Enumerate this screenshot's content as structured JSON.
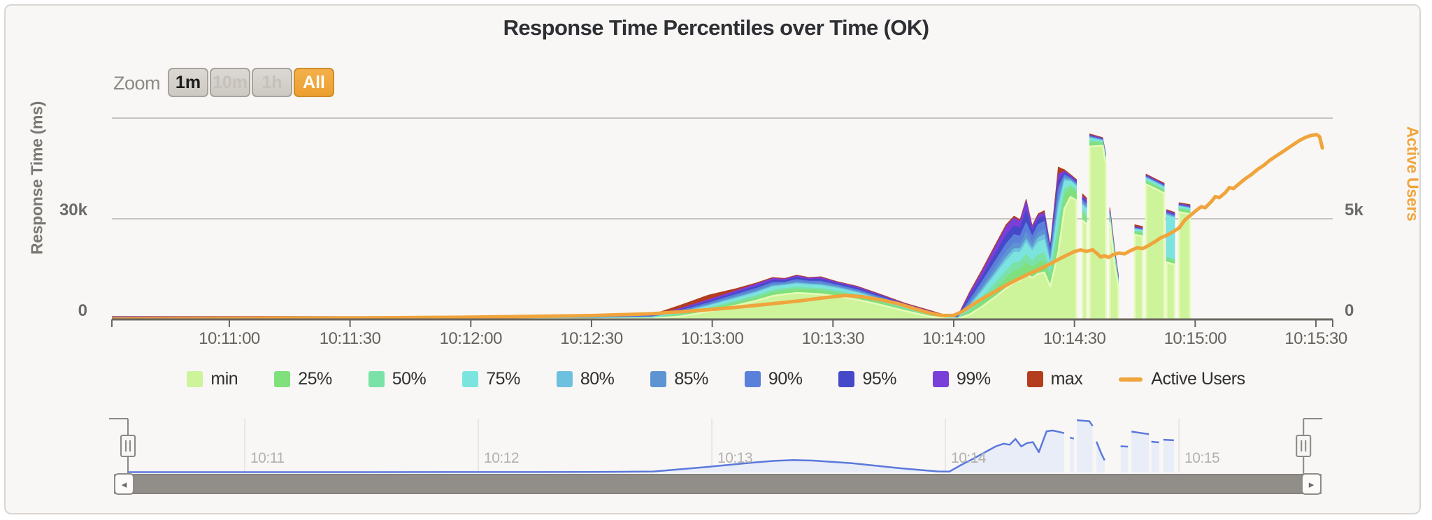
{
  "toolbar": {
    "label": "Zoom",
    "buttons": [
      {
        "label": "1m",
        "state": "enabled"
      },
      {
        "label": "10m",
        "state": "disabled"
      },
      {
        "label": "1h",
        "state": "disabled"
      },
      {
        "label": "All",
        "state": "selected"
      }
    ]
  },
  "icons": {
    "scrollbar_left": "◂",
    "scrollbar_right": "▸"
  },
  "chart_data": {
    "type": "area",
    "title": "Response Time Percentiles over Time (OK)",
    "x_axis": {
      "ticks": [
        {
          "t": 30,
          "label": "10:11:00"
        },
        {
          "t": 60,
          "label": "10:11:30"
        },
        {
          "t": 90,
          "label": "10:12:00"
        },
        {
          "t": 120,
          "label": "10:12:30"
        },
        {
          "t": 150,
          "label": "10:13:00"
        },
        {
          "t": 180,
          "label": "10:13:30"
        },
        {
          "t": 210,
          "label": "10:14:00"
        },
        {
          "t": 240,
          "label": "10:14:30"
        },
        {
          "t": 270,
          "label": "10:15:00"
        },
        {
          "t": 300,
          "label": "10:15:30"
        }
      ],
      "start_time": "10:10:30",
      "end_time": "10:15:32"
    },
    "y_left": {
      "title": "Response Time (ms)",
      "max": 60000,
      "gridlines": [
        30000,
        60000
      ],
      "ticks": [
        {
          "v": 0,
          "label": "0"
        },
        {
          "v": 30000,
          "label": "30k"
        }
      ]
    },
    "y_right": {
      "title": "Active Users",
      "max": 10000,
      "ticks": [
        {
          "v": 0,
          "label": "0"
        },
        {
          "v": 5000,
          "label": "5k"
        }
      ]
    },
    "percentiles": {
      "names": [
        "min",
        "25%",
        "50%",
        "75%",
        "80%",
        "85%",
        "90%",
        "95%",
        "99%",
        "max"
      ],
      "colors": [
        "#cdf39b",
        "#7fe07c",
        "#7be2a7",
        "#7ce4de",
        "#6ec0df",
        "#5e94d1",
        "#5b80da",
        "#4549c8",
        "#7a3ed9",
        "#b33d1e"
      ],
      "t": [
        0,
        60,
        120,
        135,
        142,
        149,
        156,
        161,
        165,
        168,
        171,
        174,
        177,
        181,
        186,
        192,
        198,
        204,
        208,
        211,
        214,
        217,
        220,
        223,
        225,
        226.5,
        228,
        229.5,
        231,
        232.5,
        234,
        236,
        237.5,
        239,
        240.5,
        241.3,
        242,
        243,
        243.4,
        243.8,
        247,
        247.8,
        248.2,
        248.8,
        250,
        250.9,
        251.5,
        255,
        256.9,
        257.4,
        257.8,
        262.3,
        262.6,
        262.9,
        264.9,
        265.4,
        266,
        268.7
      ],
      "rows": [
        [
          100,
          180,
          250,
          350,
          400,
          450,
          520,
          600,
          700,
          850
        ],
        [
          100,
          180,
          250,
          350,
          400,
          450,
          520,
          600,
          700,
          850
        ],
        [
          120,
          200,
          280,
          380,
          430,
          480,
          550,
          640,
          750,
          900
        ],
        [
          250,
          400,
          520,
          680,
          740,
          800,
          900,
          1000,
          1150,
          1400
        ],
        [
          900,
          1300,
          1600,
          2000,
          2150,
          2350,
          2600,
          2900,
          3250,
          4200
        ],
        [
          2300,
          3000,
          3400,
          4000,
          4250,
          4550,
          4950,
          5350,
          5850,
          7200
        ],
        [
          4200,
          5000,
          5500,
          6300,
          6600,
          7000,
          7500,
          8000,
          8600,
          9200
        ],
        [
          5600,
          6500,
          7100,
          8000,
          8300,
          8700,
          9300,
          9900,
          10600,
          10900
        ],
        [
          7000,
          8000,
          8700,
          9700,
          10000,
          10400,
          11000,
          11600,
          12200,
          12500
        ],
        [
          7500,
          8600,
          9200,
          10100,
          10400,
          10700,
          11100,
          11600,
          12000,
          12200
        ],
        [
          7900,
          9000,
          9600,
          10600,
          10900,
          11300,
          11900,
          12500,
          13000,
          13200
        ],
        [
          7700,
          8800,
          9400,
          10300,
          10600,
          10900,
          11400,
          11900,
          12300,
          12500
        ],
        [
          7500,
          8600,
          9200,
          10100,
          10400,
          10800,
          11400,
          12000,
          12500,
          12700
        ],
        [
          6900,
          7900,
          8500,
          9300,
          9600,
          9900,
          10300,
          10700,
          11100,
          11300
        ],
        [
          5900,
          6800,
          7300,
          8000,
          8200,
          8500,
          8900,
          9300,
          9700,
          9900
        ],
        [
          4300,
          5000,
          5400,
          5900,
          6100,
          6300,
          6600,
          6900,
          7200,
          7400
        ],
        [
          2500,
          3000,
          3300,
          3700,
          3800,
          4000,
          4200,
          4400,
          4600,
          4800
        ],
        [
          900,
          1200,
          1400,
          1700,
          1800,
          1900,
          2100,
          2300,
          2500,
          2700
        ],
        [
          300,
          450,
          550,
          700,
          750,
          800,
          900,
          1000,
          1100,
          1250
        ],
        [
          200,
          300,
          380,
          480,
          520,
          570,
          650,
          750,
          850,
          1000
        ],
        [
          1500,
          2300,
          3000,
          4000,
          4400,
          5000,
          5900,
          6800,
          7800,
          8300
        ],
        [
          3800,
          5400,
          6600,
          8300,
          8900,
          9800,
          11200,
          12600,
          14100,
          14700
        ],
        [
          6400,
          8700,
          10400,
          12800,
          13600,
          14900,
          16800,
          18800,
          20900,
          21500
        ],
        [
          9200,
          12200,
          14400,
          17400,
          18500,
          20100,
          22500,
          25000,
          27600,
          28200
        ],
        [
          11000,
          14400,
          16900,
          20000,
          21100,
          22800,
          25300,
          27900,
          30300,
          30800
        ],
        [
          11600,
          14900,
          17200,
          20100,
          21100,
          22600,
          24900,
          27200,
          29200,
          29700
        ],
        [
          13400,
          16900,
          19400,
          22900,
          24000,
          25900,
          28900,
          32300,
          35300,
          35800
        ],
        [
          12400,
          15400,
          17400,
          20400,
          21300,
          22800,
          24800,
          26400,
          27400,
          27900
        ],
        [
          13600,
          16900,
          19300,
          23000,
          24400,
          25900,
          28300,
          29900,
          31000,
          31500
        ],
        [
          14000,
          17400,
          19900,
          23800,
          25300,
          26800,
          29300,
          30800,
          31900,
          32400
        ],
        [
          9800,
          12300,
          13900,
          16400,
          17400,
          18400,
          19900,
          20900,
          21400,
          21900
        ],
        [
          20000,
          24800,
          27800,
          32800,
          34800,
          36800,
          39300,
          41300,
          43300,
          45400
        ],
        [
          33000,
          37000,
          38800,
          41200,
          41900,
          42400,
          43100,
          43600,
          44200,
          44600
        ],
        [
          36500,
          39200,
          40100,
          41200,
          41500,
          41800,
          42200,
          42500,
          42900,
          43200
        ],
        [
          35500,
          37600,
          38600,
          39700,
          40000,
          40300,
          40700,
          41000,
          41400,
          41700
        ],
        null,
        [
          29500,
          31500,
          32500,
          34000,
          34500,
          35000,
          35600,
          36100,
          36700,
          37400
        ],
        [
          28500,
          30400,
          31400,
          32900,
          33400,
          33900,
          34500,
          35000,
          35600,
          36200
        ],
        null,
        [
          51500,
          52800,
          53300,
          54000,
          54200,
          54400,
          54600,
          54800,
          55000,
          55300
        ],
        [
          51800,
          52600,
          52900,
          53300,
          53400,
          53500,
          53700,
          53800,
          54000,
          54200
        ],
        [
          46500,
          47300,
          47700,
          48200,
          48400,
          48500,
          48700,
          48800,
          49000,
          49200
        ],
        null,
        [
          28800,
          30000,
          30600,
          31300,
          31500,
          31700,
          32000,
          32200,
          32500,
          33300
        ],
        [
          16000,
          17400,
          18100,
          18900,
          19100,
          19400,
          19700,
          19900,
          20300,
          20800
        ],
        [
          9800,
          10600,
          11000,
          11600,
          11800,
          12000,
          12300,
          12500,
          12800,
          13200
        ],
        null,
        [
          25200,
          26000,
          26400,
          26900,
          27000,
          27100,
          27300,
          27400,
          27600,
          28200
        ],
        [
          24800,
          25600,
          26000,
          26500,
          26600,
          26700,
          26900,
          27000,
          27200,
          27700
        ],
        null,
        [
          40300,
          41100,
          41500,
          42100,
          42300,
          42400,
          42600,
          42700,
          43000,
          43300
        ],
        [
          37600,
          38400,
          38800,
          39400,
          39600,
          39700,
          39900,
          40000,
          40300,
          40600
        ],
        null,
        [
          17000,
          18000,
          18600,
          31000,
          31300,
          31500,
          31800,
          32000,
          32400,
          32700
        ],
        [
          16400,
          17400,
          18000,
          30200,
          30500,
          30700,
          31000,
          31200,
          31600,
          31900
        ],
        null,
        [
          32000,
          32800,
          33200,
          33700,
          33800,
          33900,
          34100,
          34200,
          34500,
          34800
        ],
        [
          31400,
          32200,
          32600,
          33100,
          33200,
          33300,
          33500,
          33600,
          33900,
          34200
        ]
      ]
    },
    "active_users": {
      "name": "Active Users",
      "color": "#f0a43c",
      "points": [
        [
          0,
          15
        ],
        [
          30,
          40
        ],
        [
          60,
          70
        ],
        [
          90,
          110
        ],
        [
          120,
          190
        ],
        [
          135,
          280
        ],
        [
          145,
          420
        ],
        [
          155,
          580
        ],
        [
          165,
          780
        ],
        [
          172,
          930
        ],
        [
          178,
          1080
        ],
        [
          183,
          1190
        ],
        [
          187,
          1140
        ],
        [
          192,
          970
        ],
        [
          196,
          790
        ],
        [
          200,
          550
        ],
        [
          204,
          320
        ],
        [
          207,
          195
        ],
        [
          210,
          200
        ],
        [
          212,
          380
        ],
        [
          214,
          640
        ],
        [
          216,
          900
        ],
        [
          218,
          1130
        ],
        [
          220,
          1350
        ],
        [
          222,
          1580
        ],
        [
          224,
          1800
        ],
        [
          226,
          2000
        ],
        [
          228,
          2200
        ],
        [
          230,
          2380
        ],
        [
          232,
          2560
        ],
        [
          234,
          2760
        ],
        [
          236,
          2980
        ],
        [
          238,
          3180
        ],
        [
          240,
          3370
        ],
        [
          241.5,
          3450
        ],
        [
          243,
          3380
        ],
        [
          244.5,
          3460
        ],
        [
          245.5,
          3300
        ],
        [
          246.5,
          3100
        ],
        [
          247.5,
          3160
        ],
        [
          248.5,
          3080
        ],
        [
          249.5,
          3200
        ],
        [
          251,
          3300
        ],
        [
          252.5,
          3260
        ],
        [
          254,
          3420
        ],
        [
          255.5,
          3560
        ],
        [
          257,
          3520
        ],
        [
          258.5,
          3680
        ],
        [
          260,
          3860
        ],
        [
          261.5,
          4060
        ],
        [
          263,
          4180
        ],
        [
          264.5,
          4350
        ],
        [
          266,
          4550
        ],
        [
          267.5,
          4950
        ],
        [
          269,
          5200
        ],
        [
          270.5,
          5450
        ],
        [
          271.5,
          5600
        ],
        [
          272.5,
          5550
        ],
        [
          274,
          5850
        ],
        [
          275,
          6100
        ],
        [
          276,
          6050
        ],
        [
          277.5,
          6300
        ],
        [
          278.5,
          6550
        ],
        [
          279.5,
          6500
        ],
        [
          281,
          6750
        ],
        [
          282.5,
          7000
        ],
        [
          284,
          7200
        ],
        [
          285.5,
          7450
        ],
        [
          287,
          7650
        ],
        [
          288.5,
          7900
        ],
        [
          290,
          8100
        ],
        [
          291.5,
          8300
        ],
        [
          293,
          8500
        ],
        [
          294.5,
          8700
        ],
        [
          296,
          8900
        ],
        [
          297.5,
          9050
        ],
        [
          299,
          9150
        ],
        [
          300.2,
          9180
        ],
        [
          300.9,
          9080
        ],
        [
          301.6,
          8520
        ]
      ]
    },
    "navigator": {
      "line_color": "#5b79dc",
      "fill_color": "#e9edf8",
      "ticks": [
        {
          "t": 30,
          "label": "10:11"
        },
        {
          "t": 90,
          "label": "10:12"
        },
        {
          "t": 150,
          "label": "10:13"
        },
        {
          "t": 210,
          "label": "10:14"
        },
        {
          "t": 270,
          "label": "10:15"
        }
      ],
      "points": [
        [
          0,
          400
        ],
        [
          60,
          400
        ],
        [
          120,
          500
        ],
        [
          135,
          1000
        ],
        [
          149,
          5900
        ],
        [
          161,
          10600
        ],
        [
          166,
          12200
        ],
        [
          171,
          13000
        ],
        [
          176,
          12500
        ],
        [
          181,
          11100
        ],
        [
          186,
          9700
        ],
        [
          192,
          7200
        ],
        [
          198,
          4600
        ],
        [
          204,
          2500
        ],
        [
          208,
          1100
        ],
        [
          211,
          850
        ],
        [
          214,
          7800
        ],
        [
          217,
          14100
        ],
        [
          220,
          20900
        ],
        [
          223,
          27600
        ],
        [
          225,
          30300
        ],
        [
          226.5,
          29200
        ],
        [
          228,
          35300
        ],
        [
          229.5,
          27400
        ],
        [
          231,
          31000
        ],
        [
          232.5,
          31900
        ],
        [
          234,
          21400
        ],
        [
          236,
          43300
        ],
        [
          237.5,
          44200
        ],
        [
          239,
          42900
        ],
        [
          240.5,
          41400
        ],
        null,
        [
          242,
          36700
        ],
        [
          243,
          35600
        ],
        null,
        [
          243.8,
          55000
        ],
        [
          247,
          54000
        ],
        [
          247.8,
          49000
        ],
        null,
        [
          248.8,
          32500
        ],
        [
          250,
          20300
        ],
        [
          250.9,
          12800
        ],
        null,
        [
          255,
          27600
        ],
        [
          256.9,
          27200
        ],
        null,
        [
          257.8,
          43000
        ],
        [
          262.3,
          40300
        ],
        null,
        [
          262.9,
          32400
        ],
        [
          264.9,
          31600
        ],
        null,
        [
          266,
          34500
        ],
        [
          268.7,
          33900
        ]
      ]
    }
  }
}
